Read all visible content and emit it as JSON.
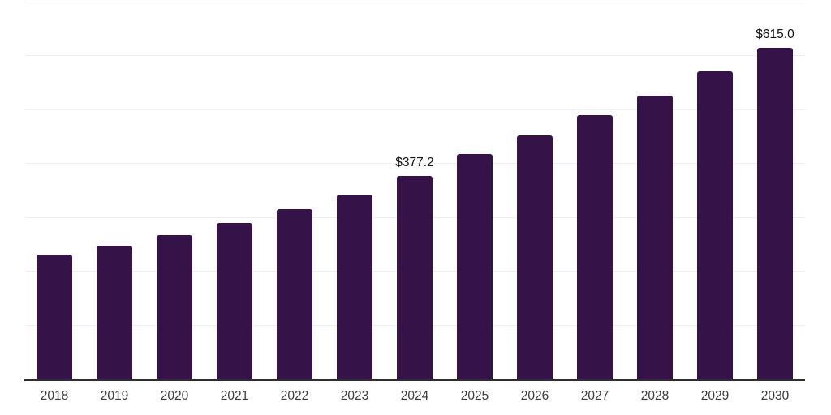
{
  "chart_data": {
    "type": "bar",
    "title": "",
    "xlabel": "",
    "ylabel": "",
    "categories": [
      "2018",
      "2019",
      "2020",
      "2021",
      "2022",
      "2023",
      "2024",
      "2025",
      "2026",
      "2027",
      "2028",
      "2029",
      "2030"
    ],
    "values": [
      232.3,
      248.8,
      268.3,
      290.8,
      316.3,
      343.0,
      377.2,
      418.9,
      452.6,
      490.1,
      527.6,
      572.5,
      615.0
    ],
    "data_labels": [
      "",
      "",
      "",
      "",
      "",
      "",
      "$377.2",
      "",
      "",
      "",
      "",
      "",
      "$615.0"
    ],
    "ylim": [
      0,
      700
    ],
    "gridline_interval": 100,
    "grid": "horizontal-only",
    "legend": "none",
    "yaxis_tick_labels": "none",
    "colors": {
      "bar_fill": "#351349",
      "gridline": "#f1f1f3",
      "axis_line": "#2e2e2e",
      "tick_label_text": "#3c3c3c",
      "data_label_text": "#111111",
      "background": "#ffffff"
    }
  }
}
